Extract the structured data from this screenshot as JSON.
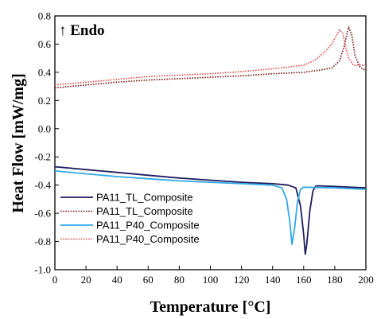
{
  "chart_data": {
    "type": "line",
    "xlabel": "Temperature [°C]",
    "ylabel": "Heat Flow [mW/mg]",
    "xlim": [
      0,
      200
    ],
    "ylim": [
      -1.0,
      0.8
    ],
    "x_ticks": [
      "0",
      "20",
      "40",
      "60",
      "80",
      "100",
      "120",
      "140",
      "160",
      "180",
      "200"
    ],
    "y_ticks": [
      "-1.0",
      "-0.8",
      "-0.6",
      "-0.4",
      "-0.2",
      "0.0",
      "0.2",
      "0.4",
      "0.6",
      "0.8"
    ],
    "grid": false,
    "legend_position": "lower-left",
    "annotation": "↑ Endo",
    "series": [
      {
        "name": "PA11_TL_Composite",
        "color": "#1f1a5e",
        "line_style": "solid",
        "points": [
          [
            0,
            -0.27
          ],
          [
            20,
            -0.29
          ],
          [
            40,
            -0.31
          ],
          [
            60,
            -0.33
          ],
          [
            80,
            -0.35
          ],
          [
            100,
            -0.365
          ],
          [
            120,
            -0.38
          ],
          [
            140,
            -0.39
          ],
          [
            150,
            -0.4
          ],
          [
            155,
            -0.42
          ],
          [
            158,
            -0.55
          ],
          [
            160,
            -0.75
          ],
          [
            161,
            -0.89
          ],
          [
            162,
            -0.82
          ],
          [
            164,
            -0.58
          ],
          [
            166,
            -0.44
          ],
          [
            168,
            -0.405
          ],
          [
            170,
            -0.405
          ],
          [
            180,
            -0.41
          ],
          [
            200,
            -0.42
          ]
        ]
      },
      {
        "name": "PA11_TL_Composite",
        "color": "#7a1515",
        "line_style": "dotted",
        "points": [
          [
            0,
            0.29
          ],
          [
            20,
            0.31
          ],
          [
            40,
            0.33
          ],
          [
            60,
            0.345
          ],
          [
            80,
            0.355
          ],
          [
            100,
            0.365
          ],
          [
            120,
            0.375
          ],
          [
            140,
            0.39
          ],
          [
            160,
            0.4
          ],
          [
            170,
            0.415
          ],
          [
            178,
            0.43
          ],
          [
            183,
            0.48
          ],
          [
            186,
            0.58
          ],
          [
            188,
            0.68
          ],
          [
            189,
            0.72
          ],
          [
            191,
            0.66
          ],
          [
            193,
            0.52
          ],
          [
            196,
            0.44
          ],
          [
            200,
            0.41
          ]
        ]
      },
      {
        "name": "PA11_P40_Composite",
        "color": "#2ea8e6",
        "line_style": "solid",
        "points": [
          [
            0,
            -0.3
          ],
          [
            20,
            -0.32
          ],
          [
            40,
            -0.34
          ],
          [
            60,
            -0.355
          ],
          [
            80,
            -0.37
          ],
          [
            100,
            -0.38
          ],
          [
            120,
            -0.39
          ],
          [
            140,
            -0.4
          ],
          [
            146,
            -0.42
          ],
          [
            149,
            -0.5
          ],
          [
            151,
            -0.65
          ],
          [
            152.5,
            -0.82
          ],
          [
            154,
            -0.72
          ],
          [
            156,
            -0.52
          ],
          [
            158,
            -0.43
          ],
          [
            160,
            -0.415
          ],
          [
            180,
            -0.42
          ],
          [
            200,
            -0.43
          ]
        ]
      },
      {
        "name": "PA11_P40_Composite",
        "color": "#e04a4a",
        "line_style": "dotted",
        "points": [
          [
            0,
            0.31
          ],
          [
            20,
            0.33
          ],
          [
            40,
            0.35
          ],
          [
            60,
            0.37
          ],
          [
            80,
            0.38
          ],
          [
            100,
            0.39
          ],
          [
            120,
            0.405
          ],
          [
            140,
            0.425
          ],
          [
            160,
            0.45
          ],
          [
            168,
            0.49
          ],
          [
            174,
            0.55
          ],
          [
            178,
            0.6
          ],
          [
            181,
            0.66
          ],
          [
            183,
            0.7
          ],
          [
            185,
            0.68
          ],
          [
            187,
            0.58
          ],
          [
            189,
            0.5
          ],
          [
            192,
            0.45
          ],
          [
            200,
            0.45
          ]
        ]
      }
    ]
  }
}
